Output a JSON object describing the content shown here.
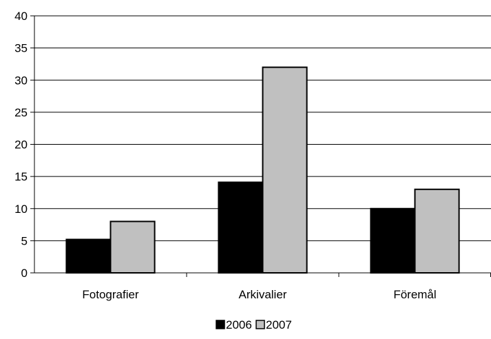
{
  "chart_data": {
    "type": "bar",
    "title": "",
    "xlabel": "",
    "ylabel": "",
    "categories": [
      "Fotografier",
      "Arkivalier",
      "Föremål"
    ],
    "series": [
      {
        "name": "2006",
        "values": [
          5.2,
          14.1,
          10
        ],
        "color": "#000000"
      },
      {
        "name": "2007",
        "values": [
          8,
          32,
          13
        ],
        "color": "#c0c0c0"
      }
    ],
    "ylim": [
      0,
      40
    ],
    "yticks": [
      0,
      5,
      10,
      15,
      20,
      25,
      30,
      35,
      40
    ],
    "grid": true,
    "legend_position": "bottom"
  }
}
